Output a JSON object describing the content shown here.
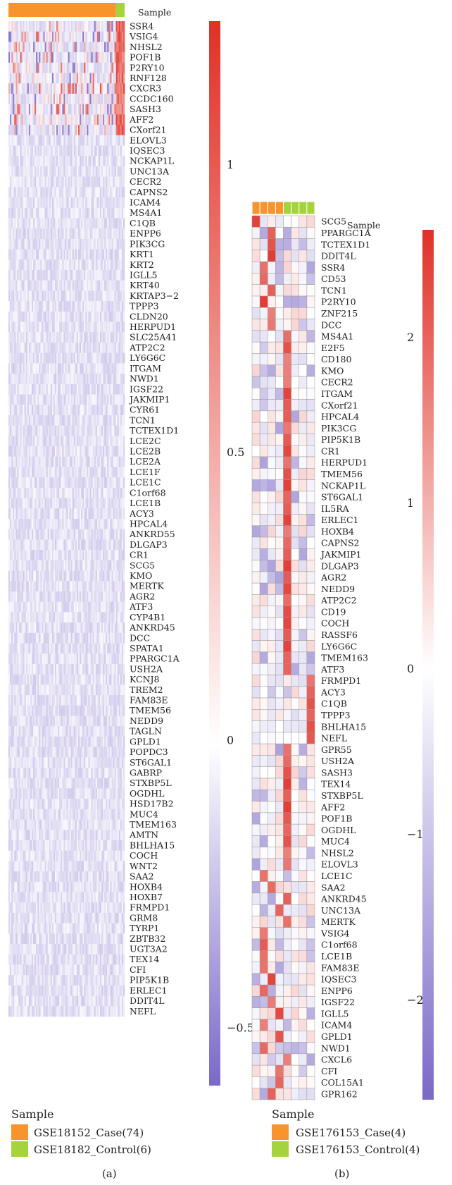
{
  "colors": {
    "case": "#F7952C",
    "control": "#A4D33C",
    "low": "#7B68C8",
    "mid": "#FFFFFF",
    "high": "#E03127"
  },
  "chart_data": [
    {
      "type": "heatmap",
      "panel_label": "(a)",
      "annotation_label": "Sample",
      "legend_title": "Sample",
      "groups": [
        {
          "name": "GSE18152_Case(74)",
          "count": 74,
          "color": "#F7952C"
        },
        {
          "name": "GSE18182_Control(6)",
          "count": 6,
          "color": "#A4D33C"
        }
      ],
      "genes": [
        "SSR4",
        "VSIG4",
        "NHSL2",
        "POF1B",
        "P2RY10",
        "RNF128",
        "CXCR3",
        "CCDC160",
        "SASH3",
        "AFF2",
        "CXorf21",
        "ELOVL3",
        "IQSEC3",
        "NCKAP1L",
        "UNC13A",
        "CECR2",
        "CAPNS2",
        "ICAM4",
        "MS4A1",
        "C1QB",
        "ENPP6",
        "PIK3CG",
        "KRT1",
        "KRT2",
        "IGLL5",
        "KRT40",
        "KRTAP3−2",
        "TPPP3",
        "CLDN20",
        "HERPUD1",
        "SLC25A41",
        "ATP2C2",
        "LY6G6C",
        "ITGAM",
        "NWD1",
        "IGSF22",
        "JAKMIP1",
        "CYR61",
        "TCN1",
        "TCTEX1D1",
        "LCE2C",
        "LCE2B",
        "LCE2A",
        "LCE1F",
        "LCE1C",
        "C1orf68",
        "LCE1B",
        "ACY3",
        "HPCAL4",
        "ANKRD55",
        "DLGAP3",
        "CR1",
        "SCG5",
        "KMO",
        "MERTK",
        "AGR2",
        "ATF3",
        "CYP4B1",
        "ANKRD45",
        "DCC",
        "SPATA1",
        "PPARGC1A",
        "USH2A",
        "KCNJ8",
        "TREM2",
        "FAM83E",
        "TMEM56",
        "NEDD9",
        "TAGLN",
        "GPLD1",
        "POPDC3",
        "ST6GAL1",
        "GABRP",
        "STXBP5L",
        "OGDHL",
        "HSD17B2",
        "MUC4",
        "TMEM163",
        "AMTN",
        "BHLHA15",
        "COCH",
        "WNT2",
        "SAA2",
        "HOXB4",
        "HOXB7",
        "FRMPD1",
        "GRM8",
        "TYRP1",
        "ZBTB32",
        "UGT3A2",
        "TEX14",
        "CFI",
        "PIP5K1B",
        "ERLEC1",
        "DDIT4L",
        "NEFL"
      ],
      "color_scale": {
        "min": -0.6,
        "max": 1.25,
        "ticks": [
          1,
          0.5,
          0,
          -0.5
        ],
        "tick_labels": [
          "1",
          "0.5",
          "0",
          "−0.5"
        ]
      }
    },
    {
      "type": "heatmap",
      "panel_label": "(b)",
      "annotation_label": "Sample",
      "legend_title": "Sample",
      "groups": [
        {
          "name": "GSE176153_Case(4)",
          "count": 4,
          "color": "#F7952C"
        },
        {
          "name": "GSE176153_Control(4)",
          "count": 4,
          "color": "#A4D33C"
        }
      ],
      "genes": [
        "SCG5",
        "PPARGC1A",
        "TCTEX1D1",
        "DDIT4L",
        "SSR4",
        "CD53",
        "TCN1",
        "P2RY10",
        "ZNF215",
        "DCC",
        "MS4A1",
        "E2F5",
        "CD180",
        "KMO",
        "CECR2",
        "ITGAM",
        "CXorf21",
        "HPCAL4",
        "PIK3CG",
        "PIP5K1B",
        "CR1",
        "HERPUD1",
        "TMEM56",
        "NCKAP1L",
        "ST6GAL1",
        "IL5RA",
        "ERLEC1",
        "HOXB4",
        "CAPNS2",
        "JAKMIP1",
        "DLGAP3",
        "AGR2",
        "NEDD9",
        "ATP2C2",
        "CD19",
        "COCH",
        "RASSF6",
        "LY6G6C",
        "TMEM163",
        "ATF3",
        "FRMPD1",
        "ACY3",
        "C1QB",
        "TPPP3",
        "BHLHA15",
        "NEFL",
        "GPR55",
        "USH2A",
        "SASH3",
        "TEX14",
        "STXBP5L",
        "AFF2",
        "POF1B",
        "OGDHL",
        "MUC4",
        "NHSL2",
        "ELOVL3",
        "LCE1C",
        "SAA2",
        "ANKRD45",
        "UNC13A",
        "MERTK",
        "VSIG4",
        "C1orf68",
        "LCE1B",
        "FAM83E",
        "IQSEC3",
        "ENPP6",
        "IGSF22",
        "IGLL5",
        "ICAM4",
        "GPLD1",
        "NWD1",
        "CXCL6",
        "CFI",
        "COL15A1",
        "GPR162"
      ],
      "color_scale": {
        "min": -2.6,
        "max": 2.65,
        "ticks": [
          2,
          1,
          0,
          -1,
          -2
        ],
        "tick_labels": [
          "2",
          "1",
          "0",
          "−1",
          "−2"
        ]
      }
    }
  ]
}
